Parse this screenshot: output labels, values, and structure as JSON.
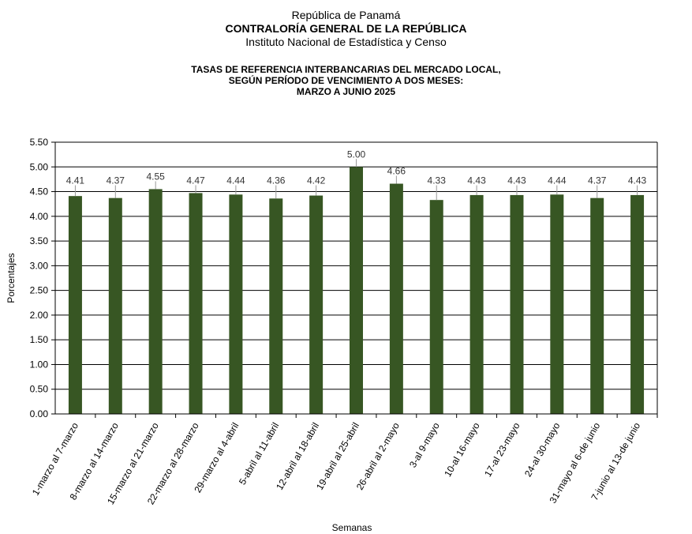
{
  "header": {
    "line1": "República de Panamá",
    "line2": "CONTRALORÍA GENERAL DE LA REPÚBLICA",
    "line3": "Instituto Nacional de Estadística y Censo"
  },
  "chart_data": {
    "type": "bar",
    "title": [
      "TASAS DE REFERENCIA INTERBANCARIAS DEL MERCADO LOCAL,",
      "SEGÚN PERÍODO DE VENCIMIENTO A DOS MESES:",
      "MARZO A JUNIO 2025"
    ],
    "xlabel": "Semanas",
    "ylabel": "Porcentajes",
    "ylim": [
      0,
      5.5
    ],
    "yticks": [
      "0.00",
      "0.50",
      "1.00",
      "1.50",
      "2.00",
      "2.50",
      "3.00",
      "3.50",
      "4.00",
      "4.50",
      "5.00",
      "5.50"
    ],
    "grid": true,
    "bar_color": "#375623",
    "categories": [
      "1-marzo al 7-marzo",
      "8-marzo al 14-marzo",
      "15-marzo al 21-marzo",
      "22-marzo al 28-marzo",
      "29-marzo al 4-abril",
      "5-abril al 11-abril",
      "12-abril al 18-abril",
      "19-abril al 25-abril",
      "26-abril al 2-mayo",
      "3-al 9-mayo",
      "10-al 16-mayo",
      "17-al 23-mayo",
      "24-al 30-mayo",
      "31-mayo al 6-de junio",
      "7-junio al 13-de junio"
    ],
    "values": [
      4.41,
      4.37,
      4.55,
      4.47,
      4.44,
      4.36,
      4.42,
      5.0,
      4.66,
      4.33,
      4.43,
      4.43,
      4.44,
      4.37,
      4.43
    ],
    "data_labels": [
      "4.41",
      "4.37",
      "4.55",
      "4.47",
      "4.44",
      "4.36",
      "4.42",
      "5.00",
      "4.66",
      "4.33",
      "4.43",
      "4.43",
      "4.44",
      "4.37",
      "4.43"
    ]
  }
}
